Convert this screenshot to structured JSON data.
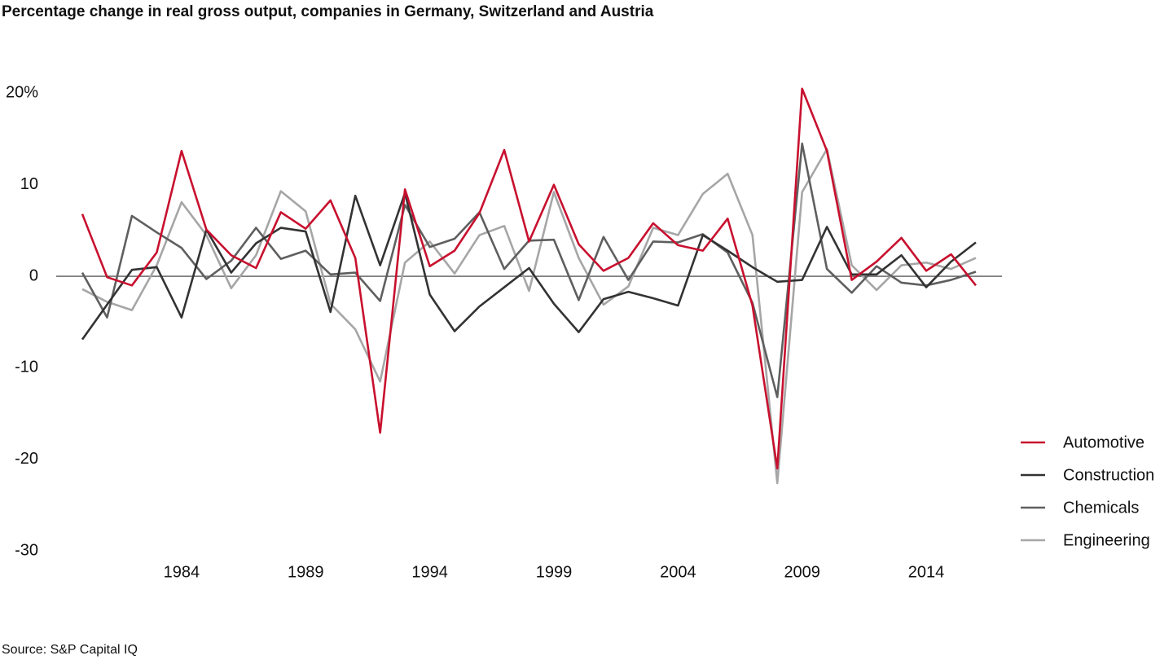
{
  "chart_data": {
    "type": "line",
    "title": "Percentage change in real gross output, companies in Germany, Switzerland and Austria",
    "source": "Source: S&P Capital IQ",
    "x": [
      1980,
      1981,
      1982,
      1983,
      1984,
      1985,
      1986,
      1987,
      1988,
      1989,
      1990,
      1991,
      1992,
      1993,
      1994,
      1995,
      1996,
      1997,
      1998,
      1999,
      2000,
      2001,
      2002,
      2003,
      2004,
      2005,
      2006,
      2007,
      2008,
      2009,
      2010,
      2011,
      2012,
      2013,
      2014,
      2015,
      2016
    ],
    "xlim": [
      1980,
      2016
    ],
    "xticks": [
      1984,
      1989,
      1994,
      1999,
      2004,
      2009,
      2014
    ],
    "ylim": [
      -30,
      22
    ],
    "yticks": [
      {
        "value": 20,
        "label": "20%"
      },
      10,
      0,
      -10,
      -20,
      -30
    ],
    "grid": false,
    "legend": "right",
    "series": [
      {
        "name": "Automotive",
        "color": "#c8102e",
        "values": [
          6.8,
          -0.1,
          -1.0,
          2.6,
          13.7,
          5.1,
          2.3,
          0.9,
          7.0,
          5.2,
          8.3,
          2.0,
          -17.1,
          9.5,
          1.1,
          2.8,
          6.9,
          13.8,
          3.8,
          10.0,
          3.5,
          0.6,
          2.0,
          5.8,
          3.4,
          2.8,
          6.3,
          -3.2,
          -21.0,
          20.5,
          13.7,
          -0.4,
          1.6,
          4.2,
          0.6,
          2.4,
          -1.0
        ]
      },
      {
        "name": "Construction",
        "color": "#333333",
        "values": [
          -6.9,
          -3.1,
          0.7,
          1.0,
          -4.5,
          5.1,
          0.4,
          3.6,
          5.3,
          4.9,
          -3.9,
          8.8,
          1.2,
          9.1,
          -2.0,
          -6.0,
          -3.3,
          -1.2,
          0.9,
          -3.0,
          -6.1,
          -2.5,
          -1.7,
          -2.4,
          -3.2,
          4.5,
          2.8,
          1.0,
          -0.6,
          -0.4,
          5.4,
          0.2,
          0.2,
          2.3,
          -1.2,
          1.6,
          3.7
        ]
      },
      {
        "name": "Chemicals",
        "color": "#5f5f5f",
        "values": [
          0.4,
          -4.5,
          6.6,
          4.8,
          3.1,
          -0.3,
          1.7,
          5.3,
          1.9,
          2.8,
          0.2,
          0.4,
          -2.7,
          7.8,
          3.2,
          4.1,
          7.0,
          0.8,
          3.9,
          4.0,
          -2.6,
          4.3,
          -0.4,
          3.8,
          3.7,
          4.6,
          2.6,
          -2.9,
          -13.2,
          14.5,
          0.8,
          -1.8,
          1.1,
          -0.7,
          -1.0,
          -0.4,
          0.5
        ]
      },
      {
        "name": "Engineering",
        "color": "#a6a6a6",
        "values": [
          -1.4,
          -2.8,
          -3.7,
          1.2,
          8.1,
          4.5,
          -1.3,
          2.3,
          9.3,
          7.1,
          -3.0,
          -5.8,
          -11.5,
          1.5,
          3.8,
          0.3,
          4.5,
          5.5,
          -1.6,
          9.2,
          2.0,
          -3.1,
          -1.1,
          5.3,
          4.5,
          9.0,
          11.2,
          4.5,
          -22.6,
          9.2,
          13.9,
          1.2,
          -1.5,
          1.2,
          1.5,
          0.8,
          2.0
        ]
      }
    ]
  }
}
